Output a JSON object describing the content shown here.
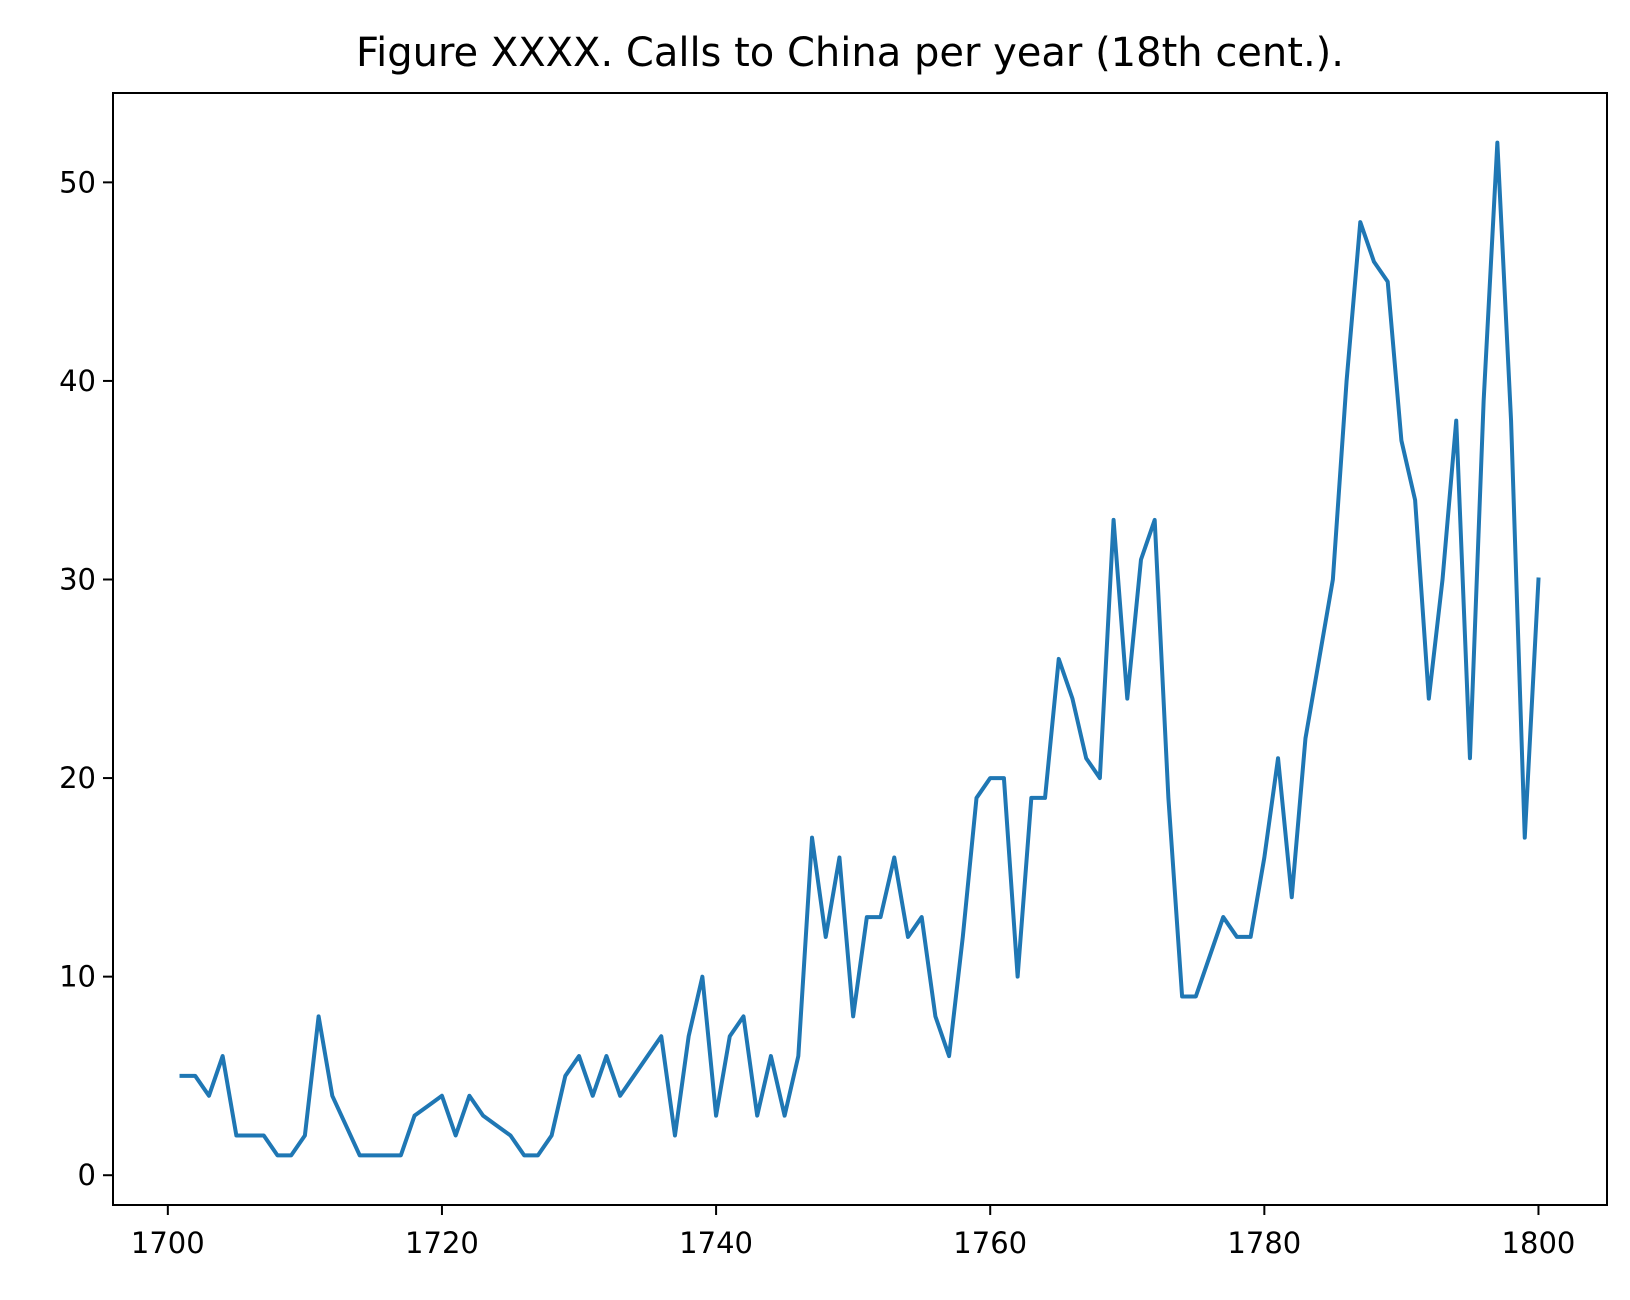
{
  "chart_data": {
    "type": "line",
    "title": "Figure XXXX. Calls to China per year (18th cent.).",
    "xlabel": "",
    "ylabel": "",
    "xlim": [
      1696,
      1805
    ],
    "ylim": [
      -1.5,
      54.5
    ],
    "x_ticks": [
      1700,
      1720,
      1740,
      1760,
      1780,
      1800
    ],
    "y_ticks": [
      0,
      10,
      20,
      30,
      40,
      50
    ],
    "grid": false,
    "legend": "none",
    "series": [
      {
        "color": "#1f77b4",
        "x": [
          1701,
          1702,
          1703,
          1704,
          1705,
          1706,
          1707,
          1708,
          1709,
          1710,
          1711,
          1712,
          1713,
          1714,
          1715,
          1716,
          1717,
          1718,
          1719,
          1720,
          1721,
          1722,
          1723,
          1724,
          1725,
          1726,
          1727,
          1728,
          1729,
          1730,
          1731,
          1732,
          1733,
          1734,
          1735,
          1736,
          1737,
          1738,
          1739,
          1740,
          1741,
          1742,
          1743,
          1744,
          1745,
          1746,
          1747,
          1748,
          1749,
          1750,
          1751,
          1752,
          1753,
          1754,
          1755,
          1756,
          1757,
          1758,
          1759,
          1760,
          1761,
          1762,
          1763,
          1764,
          1765,
          1766,
          1767,
          1768,
          1769,
          1770,
          1771,
          1772,
          1773,
          1774,
          1775,
          1776,
          1777,
          1778,
          1779,
          1780,
          1781,
          1782,
          1783,
          1784,
          1785,
          1786,
          1787,
          1788,
          1789,
          1790,
          1791,
          1792,
          1793,
          1794,
          1795,
          1796,
          1797,
          1798,
          1799,
          1800
        ],
        "y": [
          5,
          5,
          4,
          6,
          2,
          2,
          2,
          1,
          1,
          2,
          8,
          4,
          2.5,
          1,
          1,
          1,
          1,
          3,
          3.5,
          4,
          2,
          4,
          3,
          2.5,
          2,
          1,
          1,
          2,
          5,
          6,
          4,
          6,
          4,
          5,
          6,
          7,
          2,
          7,
          10,
          3,
          7,
          8,
          3,
          6,
          3,
          6,
          17,
          12,
          16,
          8,
          13,
          13,
          16,
          12,
          13,
          8,
          6,
          12,
          19,
          20,
          20,
          10,
          19,
          19,
          26,
          24,
          21,
          20,
          33,
          24,
          31,
          33,
          19,
          9,
          9,
          11,
          13,
          12,
          12,
          16,
          21,
          14,
          22,
          26,
          30,
          40,
          48,
          46,
          45,
          37,
          34,
          24,
          30,
          38,
          21,
          39,
          52,
          38,
          17,
          30
        ]
      }
    ]
  }
}
